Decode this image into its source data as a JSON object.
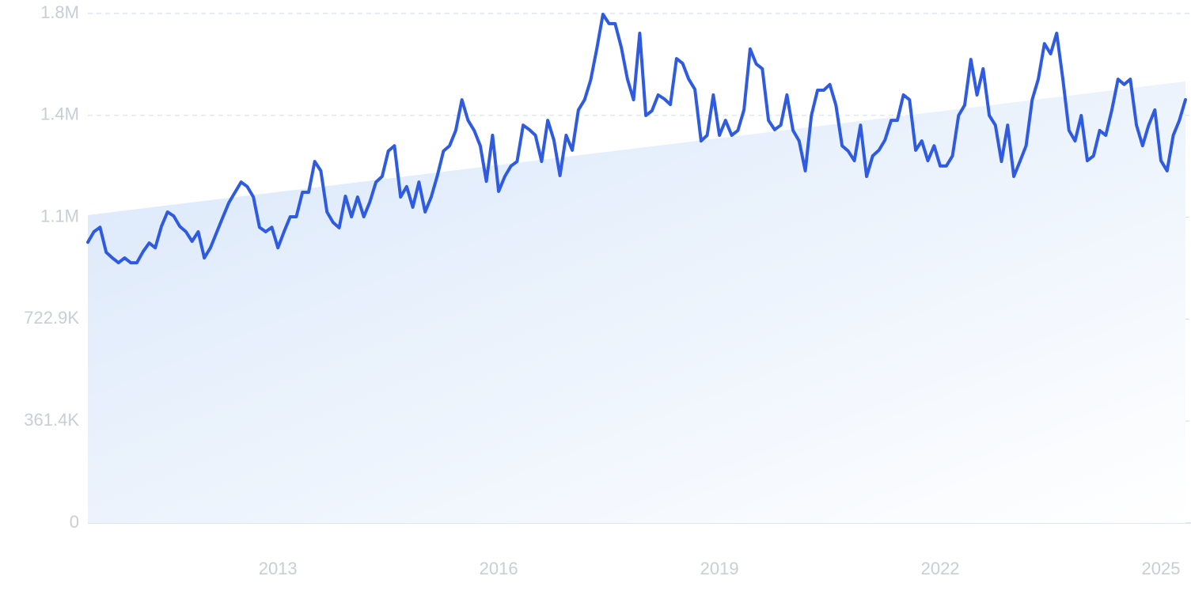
{
  "chart_data": {
    "type": "line",
    "color": "#2f5be0",
    "grid": true,
    "xlim": [
      2010.417,
      2025.333
    ],
    "xticks": [
      2013,
      2016,
      2019,
      2022,
      2025
    ],
    "ylim": [
      0,
      1807100
    ],
    "yticks": [
      0,
      {
        "value": 361400,
        "label": "361.4K"
      },
      {
        "value": 722900,
        "label": "722.9K"
      },
      {
        "value": 1084300,
        "label": "1.1M"
      },
      {
        "value": 1445700,
        "label": "1.4M"
      },
      {
        "value": 1807100,
        "label": "1.8M"
      }
    ],
    "trend_values": [
      1092000,
      1566000
    ],
    "x": [
      2010.417,
      2010.5,
      2010.583,
      2010.667,
      2010.75,
      2010.833,
      2010.917,
      2011,
      2011.083,
      2011.167,
      2011.25,
      2011.333,
      2011.417,
      2011.5,
      2011.583,
      2011.667,
      2011.75,
      2011.833,
      2011.917,
      2012,
      2012.083,
      2012.167,
      2012.25,
      2012.333,
      2012.417,
      2012.5,
      2012.583,
      2012.667,
      2012.75,
      2012.833,
      2012.917,
      2013,
      2013.083,
      2013.167,
      2013.25,
      2013.333,
      2013.417,
      2013.5,
      2013.583,
      2013.667,
      2013.75,
      2013.833,
      2013.917,
      2014,
      2014.083,
      2014.167,
      2014.25,
      2014.333,
      2014.417,
      2014.5,
      2014.583,
      2014.667,
      2014.75,
      2014.833,
      2014.917,
      2015,
      2015.083,
      2015.167,
      2015.25,
      2015.333,
      2015.417,
      2015.5,
      2015.583,
      2015.667,
      2015.75,
      2015.833,
      2015.917,
      2016,
      2016.083,
      2016.167,
      2016.25,
      2016.333,
      2016.417,
      2016.5,
      2016.583,
      2016.667,
      2016.75,
      2016.833,
      2016.917,
      2017,
      2017.083,
      2017.167,
      2017.25,
      2017.333,
      2017.417,
      2017.5,
      2017.583,
      2017.667,
      2017.75,
      2017.833,
      2017.917,
      2018,
      2018.083,
      2018.167,
      2018.25,
      2018.333,
      2018.417,
      2018.5,
      2018.583,
      2018.667,
      2018.75,
      2018.833,
      2018.917,
      2019,
      2019.083,
      2019.167,
      2019.25,
      2019.333,
      2019.417,
      2019.5,
      2019.583,
      2019.667,
      2019.75,
      2019.833,
      2019.917,
      2020,
      2020.083,
      2020.167,
      2020.25,
      2020.333,
      2020.417,
      2020.5,
      2020.583,
      2020.667,
      2020.75,
      2020.833,
      2020.917,
      2021,
      2021.083,
      2021.167,
      2021.25,
      2021.333,
      2021.417,
      2021.5,
      2021.583,
      2021.667,
      2021.75,
      2021.833,
      2021.917,
      2022,
      2022.083,
      2022.167,
      2022.25,
      2022.333,
      2022.417,
      2022.5,
      2022.583,
      2022.667,
      2022.75,
      2022.833,
      2022.917,
      2023,
      2023.083,
      2023.167,
      2023.25,
      2023.333,
      2023.417,
      2023.5,
      2023.583,
      2023.667,
      2023.75,
      2023.833,
      2023.917,
      2024,
      2024.083,
      2024.167,
      2024.25,
      2024.333,
      2024.417,
      2024.5,
      2024.583,
      2024.667,
      2024.75,
      2024.833,
      2024.917,
      2025,
      2025.083,
      2025.167,
      2025.25,
      2025.333
    ],
    "values": [
      996000,
      1033000,
      1049000,
      960000,
      940000,
      923000,
      940000,
      923000,
      923000,
      962000,
      993000,
      976000,
      1052000,
      1103000,
      1089000,
      1052000,
      1033000,
      999000,
      1033000,
      940000,
      976000,
      1030000,
      1083000,
      1136000,
      1173000,
      1209000,
      1193000,
      1156000,
      1049000,
      1033000,
      1049000,
      976000,
      1033000,
      1086000,
      1086000,
      1173000,
      1173000,
      1282000,
      1249000,
      1103000,
      1066000,
      1047000,
      1159000,
      1086000,
      1156000,
      1086000,
      1139000,
      1209000,
      1229000,
      1319000,
      1338000,
      1156000,
      1193000,
      1120000,
      1209000,
      1103000,
      1156000,
      1232000,
      1319000,
      1338000,
      1392000,
      1501000,
      1428000,
      1392000,
      1338000,
      1212000,
      1375000,
      1176000,
      1229000,
      1266000,
      1282000,
      1411000,
      1395000,
      1375000,
      1282000,
      1428000,
      1358000,
      1232000,
      1375000,
      1322000,
      1465000,
      1501000,
      1571000,
      1681000,
      1804000,
      1771000,
      1771000,
      1686000,
      1574000,
      1501000,
      1737000,
      1445000,
      1462000,
      1518000,
      1504000,
      1484000,
      1647000,
      1630000,
      1574000,
      1538000,
      1355000,
      1375000,
      1518000,
      1375000,
      1428000,
      1375000,
      1392000,
      1465000,
      1681000,
      1628000,
      1611000,
      1428000,
      1395000,
      1411000,
      1518000,
      1392000,
      1355000,
      1249000,
      1445000,
      1535000,
      1535000,
      1555000,
      1482000,
      1338000,
      1319000,
      1285000,
      1411000,
      1229000,
      1302000,
      1322000,
      1358000,
      1428000,
      1428000,
      1518000,
      1501000,
      1322000,
      1355000,
      1285000,
      1338000,
      1266000,
      1266000,
      1302000,
      1445000,
      1482000,
      1644000,
      1518000,
      1611000,
      1445000,
      1411000,
      1282000,
      1411000,
      1229000,
      1282000,
      1338000,
      1501000,
      1574000,
      1700000,
      1664000,
      1737000,
      1574000,
      1392000,
      1355000,
      1445000,
      1285000,
      1302000,
      1392000,
      1375000,
      1465000,
      1574000,
      1555000,
      1574000,
      1411000,
      1338000,
      1411000,
      1465000,
      1285000,
      1249000,
      1375000,
      1428000,
      1501000
    ]
  }
}
